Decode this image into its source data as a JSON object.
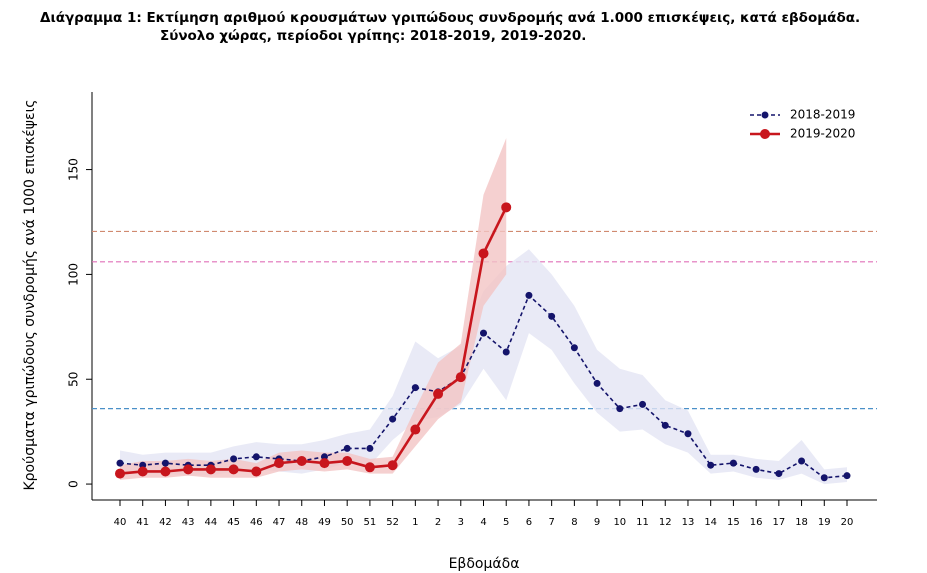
{
  "chart_data": {
    "type": "line",
    "title": "Διάγραμμα 1: Εκτίμηση αριθμού κρουσμάτων γριπώδους συνδρομής ανά 1.000 επισκέψεις, κατά εβδομάδα.",
    "subtitle": "Σύνολο χώρας, περίοδοι γρίπης:  2018-2019, 2019-2020.",
    "x_label": "Εβδομάδα",
    "y_label": "Κρούσματα γριπώδους συνδρομής ανά 1000 επισκέψεις",
    "categories": [
      "40",
      "41",
      "42",
      "43",
      "44",
      "45",
      "46",
      "47",
      "48",
      "49",
      "50",
      "51",
      "52",
      "1",
      "2",
      "3",
      "4",
      "5",
      "6",
      "7",
      "8",
      "9",
      "10",
      "11",
      "12",
      "13",
      "14",
      "15",
      "16",
      "17",
      "18",
      "19",
      "20"
    ],
    "series": [
      {
        "name": "2018-2019",
        "color": "#14146b",
        "band_color": "#e3e5f4",
        "dashed": true,
        "values": [
          10,
          9,
          10,
          9,
          9,
          12,
          13,
          12,
          11,
          13,
          17,
          17,
          31,
          46,
          44,
          51,
          72,
          63,
          90,
          80,
          65,
          48,
          36,
          38,
          28,
          24,
          9,
          10,
          7,
          5,
          11,
          3,
          4
        ],
        "lower": [
          5,
          5,
          5,
          4,
          4,
          6,
          7,
          6,
          5,
          7,
          10,
          9,
          21,
          30,
          32,
          38,
          55,
          40,
          72,
          64,
          48,
          34,
          25,
          26,
          19,
          15,
          5,
          6,
          3,
          2,
          5,
          0,
          1
        ],
        "upper": [
          16,
          14,
          15,
          15,
          15,
          18,
          20,
          19,
          19,
          21,
          24,
          26,
          42,
          68,
          60,
          66,
          92,
          104,
          112,
          100,
          85,
          64,
          55,
          52,
          40,
          35,
          14,
          14,
          12,
          11,
          21,
          7,
          8
        ]
      },
      {
        "name": "2019-2020",
        "color": "#c8161d",
        "band_color": "#f3c4c4",
        "dashed": false,
        "values": [
          5,
          6,
          6,
          7,
          7,
          7,
          6,
          10,
          11,
          10,
          11,
          8,
          9,
          26,
          43,
          51,
          110,
          132,
          null,
          null,
          null,
          null,
          null,
          null,
          null,
          null,
          null,
          null,
          null,
          null,
          null,
          null,
          null
        ],
        "lower": [
          2,
          3,
          3,
          4,
          3,
          3,
          3,
          6,
          7,
          6,
          7,
          5,
          5,
          18,
          31,
          39,
          85,
          100,
          null,
          null,
          null,
          null,
          null,
          null,
          null,
          null,
          null,
          null,
          null,
          null,
          null,
          null,
          null
        ],
        "upper": [
          9,
          11,
          11,
          12,
          11,
          12,
          10,
          15,
          16,
          15,
          15,
          12,
          13,
          36,
          58,
          67,
          138,
          165,
          null,
          null,
          null,
          null,
          null,
          null,
          null,
          null,
          null,
          null,
          null,
          null,
          null,
          null,
          null
        ]
      }
    ],
    "thresholds": [
      {
        "value": 36,
        "color": "#4a90c8"
      },
      {
        "value": 106,
        "color": "#e070b8"
      },
      {
        "value": 120.5,
        "color": "#d08a70"
      }
    ],
    "ylim": [
      -7.6,
      187
    ],
    "yticks": [
      0,
      50,
      100,
      150
    ],
    "legend": "top-right",
    "grid": false
  }
}
